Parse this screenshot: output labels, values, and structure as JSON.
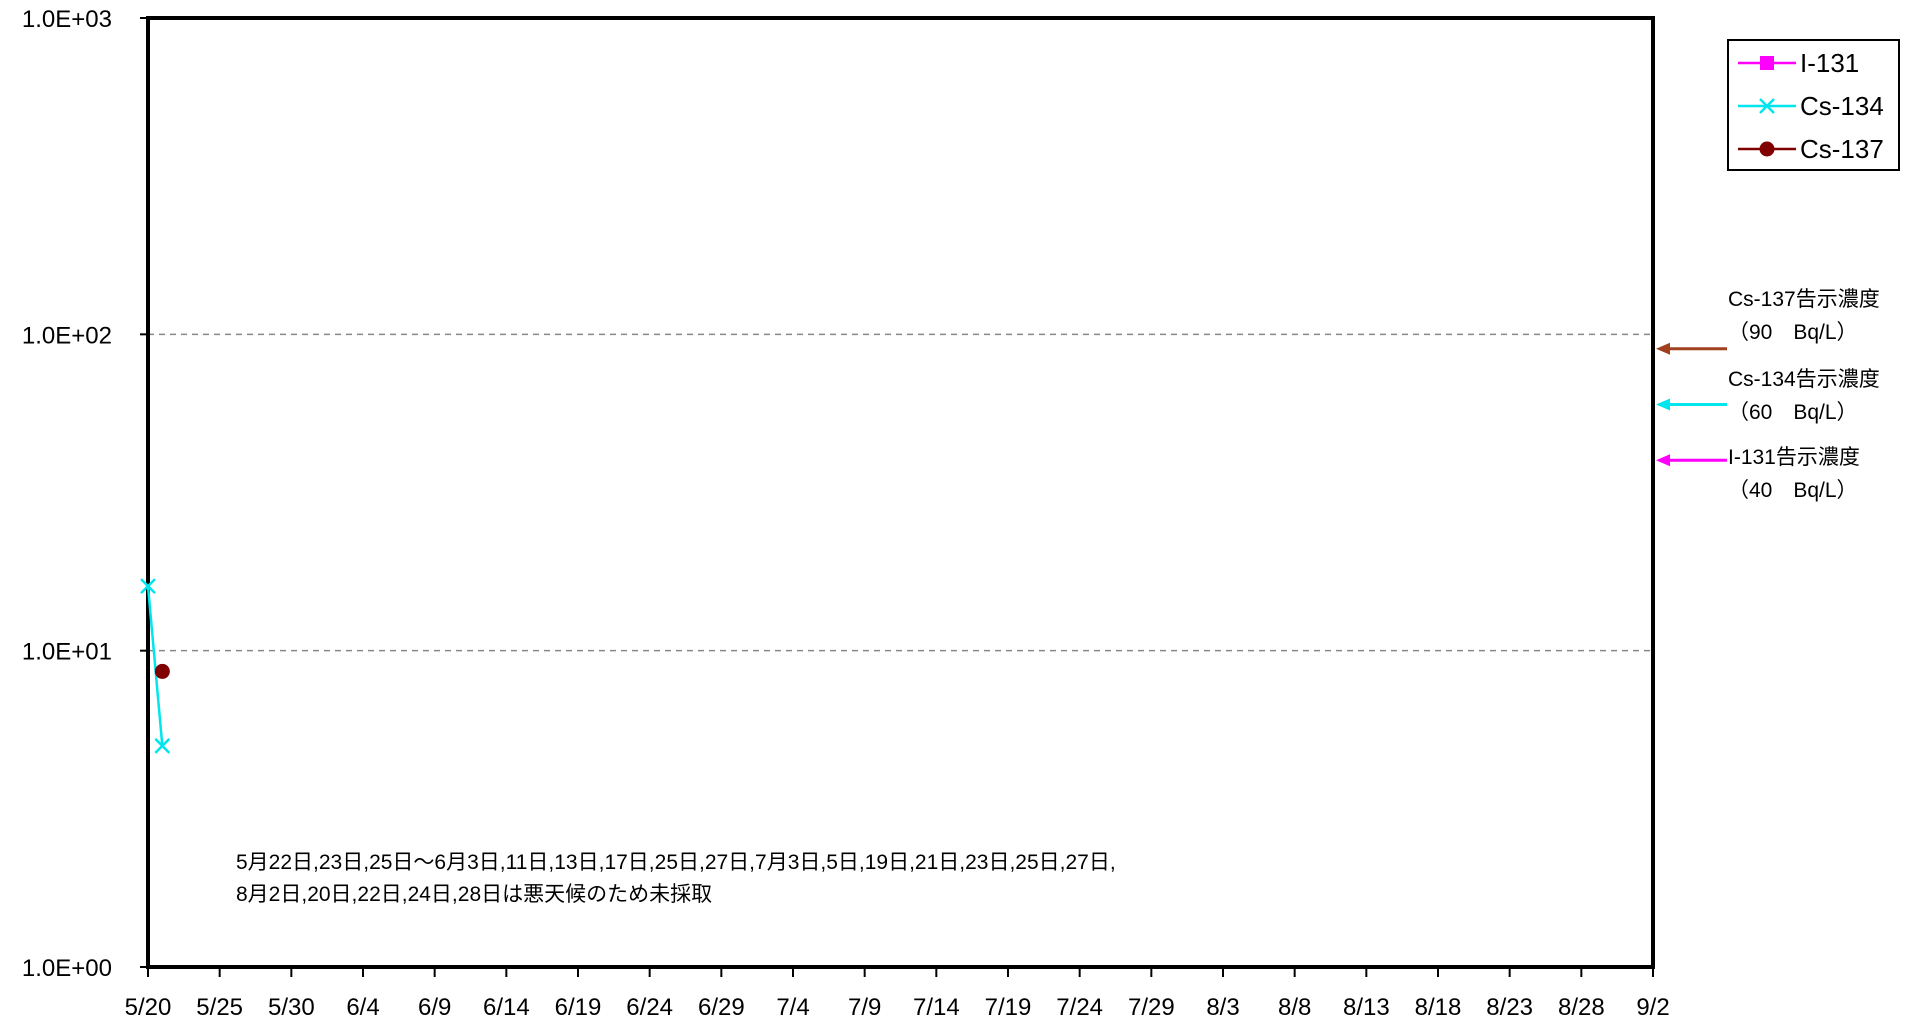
{
  "chart_data": {
    "type": "line",
    "y_scale": "log",
    "ylim": [
      1,
      1000
    ],
    "y_ticks": [
      {
        "value": 1,
        "label": "1.0E+00"
      },
      {
        "value": 10,
        "label": "1.0E+01"
      },
      {
        "value": 100,
        "label": "1.0E+02"
      },
      {
        "value": 1000,
        "label": "1.0E+03"
      }
    ],
    "xlim": [
      "5/20",
      "9/2"
    ],
    "x_tick_labels": [
      "5/20",
      "5/25",
      "5/30",
      "6/4",
      "6/9",
      "6/14",
      "6/19",
      "6/24",
      "6/29",
      "7/4",
      "7/9",
      "7/14",
      "7/19",
      "7/24",
      "7/29",
      "8/3",
      "8/8",
      "8/13",
      "8/18",
      "8/23",
      "8/28",
      "9/2"
    ],
    "gridlines": [
      10,
      100
    ],
    "legend_position": "top-right",
    "series": [
      {
        "name": "I-131",
        "color": "#ff00ff",
        "marker": "square",
        "points": []
      },
      {
        "name": "Cs-134",
        "color": "#00e5ee",
        "marker": "x",
        "points": [
          {
            "x": "5/20",
            "y": 16
          },
          {
            "x": "5/21",
            "y": 5
          }
        ]
      },
      {
        "name": "Cs-137",
        "color": "#800000",
        "marker": "circle",
        "points": [
          {
            "x": "5/21",
            "y": 8.6
          }
        ]
      }
    ],
    "reference_levels": [
      {
        "label": "Cs-137告示濃度",
        "value_label": "（90　Bq/L）",
        "value": 90,
        "color": "#a0401e"
      },
      {
        "label": "Cs-134告示濃度",
        "value_label": "（60　Bq/L）",
        "value": 60,
        "color": "#00e5ee"
      },
      {
        "label": "I-131告示濃度",
        "value_label": "（40　Bq/L）",
        "value": 40,
        "color": "#ff00ff"
      }
    ],
    "annotation_lines": [
      "5月22日,23日,25日～6月3日,11日,13日,17日,25日,27日,7月3日,5日,19日,21日,23日,25日,27日,",
      "8月2日,20日,22日,24日,28日は悪天候のため未採取"
    ]
  }
}
